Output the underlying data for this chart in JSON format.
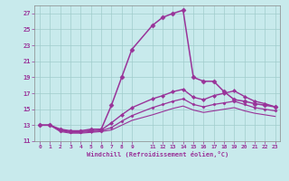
{
  "xlabel": "Windchill (Refroidissement éolien,°C)",
  "bg_color": "#c8eaec",
  "grid_color": "#a0cccc",
  "line_color": "#993399",
  "spine_color": "#888888",
  "xlim": [
    -0.5,
    23.5
  ],
  "ylim": [
    11,
    28
  ],
  "xticks": [
    0,
    1,
    2,
    3,
    4,
    5,
    6,
    7,
    8,
    9,
    11,
    12,
    13,
    14,
    15,
    16,
    17,
    18,
    19,
    20,
    21,
    22,
    23
  ],
  "yticks": [
    11,
    13,
    15,
    17,
    19,
    21,
    23,
    25,
    27
  ],
  "lines": [
    {
      "x": [
        0,
        1,
        2,
        3,
        4,
        5,
        6,
        7,
        8,
        9,
        11,
        12,
        13,
        14,
        15,
        16,
        17,
        18,
        19,
        20,
        21,
        22,
        23
      ],
      "y": [
        13,
        13,
        12.5,
        12.3,
        12.3,
        12.5,
        12.5,
        15.5,
        19.0,
        22.5,
        25.5,
        26.5,
        27.0,
        27.4,
        19.0,
        18.5,
        18.5,
        17.2,
        16.2,
        16.0,
        15.7,
        15.5,
        15.3
      ],
      "marker": "D",
      "markersize": 2.5,
      "linewidth": 1.1
    },
    {
      "x": [
        0,
        1,
        2,
        3,
        4,
        5,
        6,
        7,
        8,
        9,
        11,
        12,
        13,
        14,
        15,
        16,
        17,
        18,
        19,
        20,
        21,
        22,
        23
      ],
      "y": [
        13,
        13,
        12.4,
        12.2,
        12.2,
        12.3,
        12.4,
        13.3,
        14.3,
        15.2,
        16.3,
        16.7,
        17.2,
        17.5,
        16.5,
        16.2,
        16.7,
        17.0,
        17.3,
        16.6,
        16.0,
        15.7,
        15.3
      ],
      "marker": "D",
      "markersize": 2.0,
      "linewidth": 1.0
    },
    {
      "x": [
        0,
        1,
        2,
        3,
        4,
        5,
        6,
        7,
        8,
        9,
        11,
        12,
        13,
        14,
        15,
        16,
        17,
        18,
        19,
        20,
        21,
        22,
        23
      ],
      "y": [
        13,
        13,
        12.3,
        12.1,
        12.1,
        12.2,
        12.3,
        12.7,
        13.5,
        14.2,
        15.2,
        15.6,
        16.0,
        16.3,
        15.6,
        15.3,
        15.6,
        15.8,
        16.0,
        15.6,
        15.2,
        15.0,
        14.8
      ],
      "marker": "D",
      "markersize": 1.5,
      "linewidth": 0.9
    },
    {
      "x": [
        0,
        1,
        2,
        3,
        4,
        5,
        6,
        7,
        8,
        9,
        11,
        12,
        13,
        14,
        15,
        16,
        17,
        18,
        19,
        20,
        21,
        22,
        23
      ],
      "y": [
        13,
        13,
        12.2,
        12.0,
        12.0,
        12.1,
        12.2,
        12.4,
        13.0,
        13.6,
        14.3,
        14.7,
        15.1,
        15.4,
        14.9,
        14.6,
        14.8,
        15.0,
        15.2,
        14.8,
        14.5,
        14.3,
        14.1
      ],
      "marker": null,
      "markersize": 0,
      "linewidth": 0.8
    }
  ]
}
